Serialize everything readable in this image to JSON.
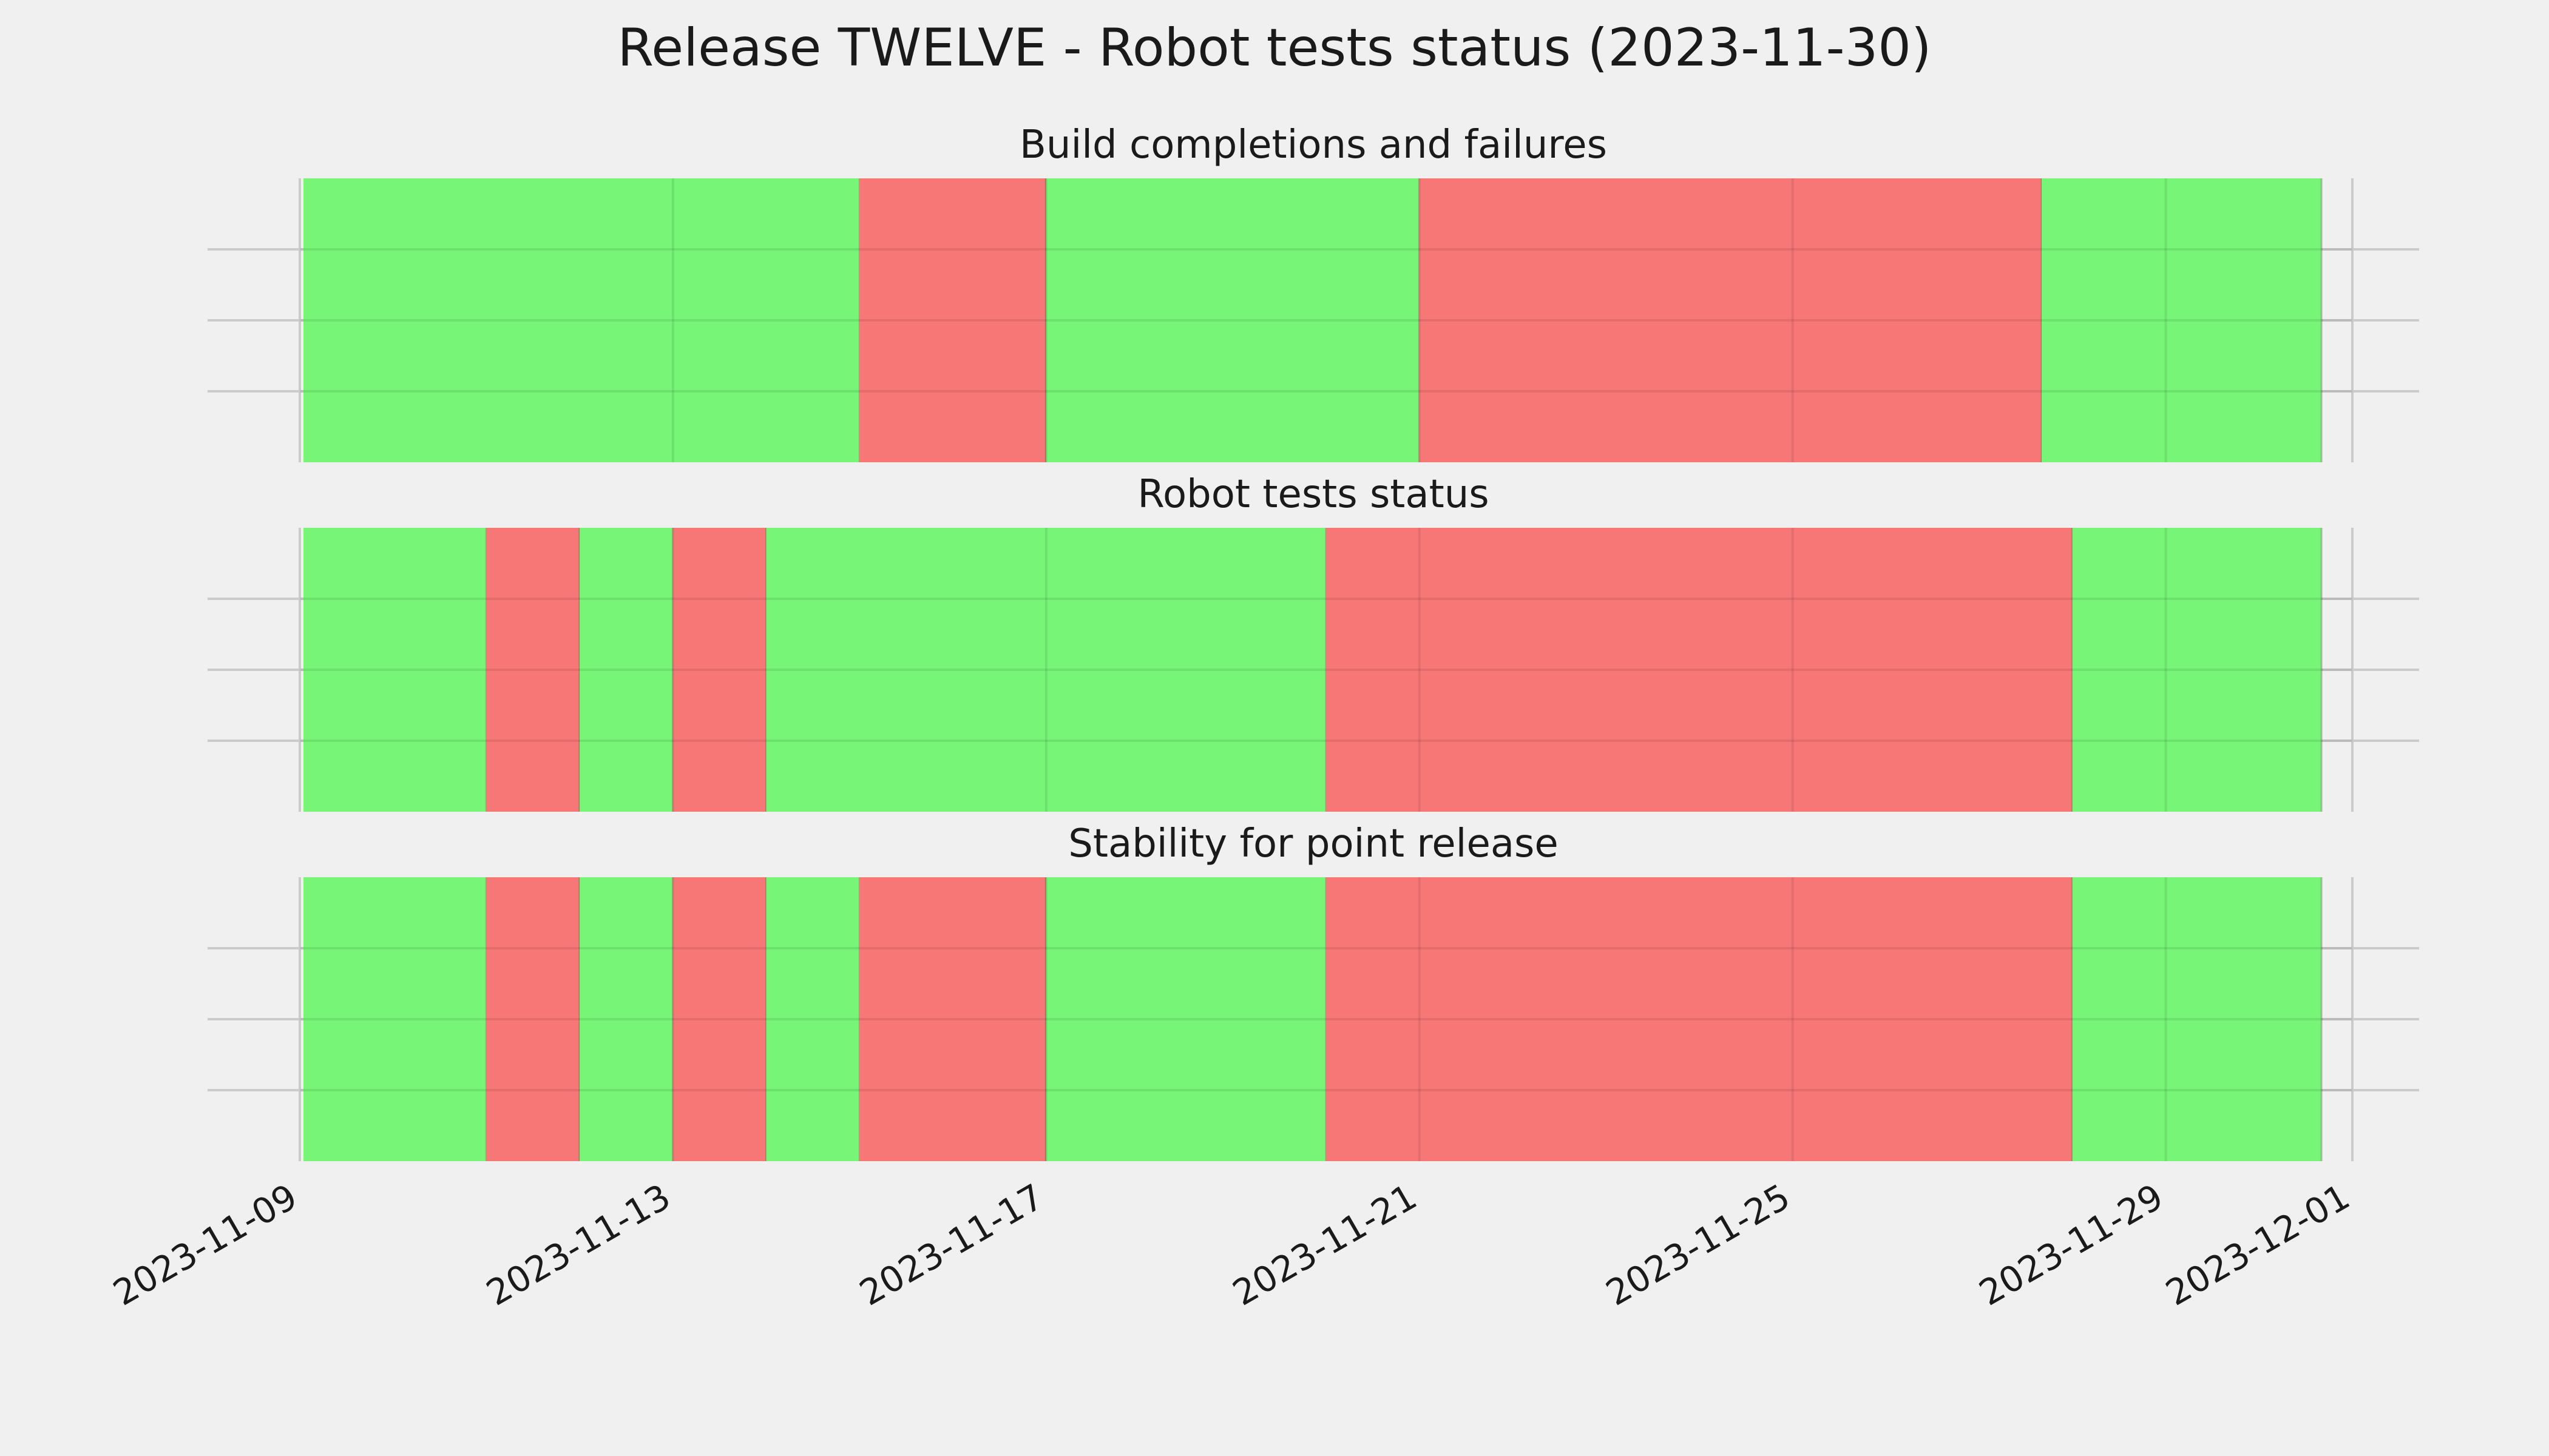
{
  "chart_data": {
    "type": "timeline",
    "title": "Release TWELVE - Robot tests status (2023-11-30)",
    "x_range": [
      "2023-11-09",
      "2023-12-01"
    ],
    "x_ticks": [
      "2023-11-09",
      "2023-11-13",
      "2023-11-17",
      "2023-11-21",
      "2023-11-25",
      "2023-11-29",
      "2023-12-01"
    ],
    "grid": true,
    "colors": {
      "pass": "#77f577",
      "fail": "#f77777"
    },
    "panels": [
      {
        "name": "Build completions and failures",
        "segments": [
          {
            "start": "2023-11-09",
            "end": "2023-11-15",
            "status": "pass"
          },
          {
            "start": "2023-11-15",
            "end": "2023-11-17",
            "status": "fail"
          },
          {
            "start": "2023-11-17",
            "end": "2023-11-21",
            "status": "pass"
          },
          {
            "start": "2023-11-21",
            "end": "2023-11-27.67",
            "status": "fail"
          },
          {
            "start": "2023-11-27.67",
            "end": "2023-11-30.67",
            "status": "pass"
          }
        ]
      },
      {
        "name": "Robot tests status",
        "segments": [
          {
            "start": "2023-11-09",
            "end": "2023-11-11",
            "status": "pass"
          },
          {
            "start": "2023-11-11",
            "end": "2023-11-12",
            "status": "fail"
          },
          {
            "start": "2023-11-12",
            "end": "2023-11-13",
            "status": "pass"
          },
          {
            "start": "2023-11-13",
            "end": "2023-11-14",
            "status": "fail"
          },
          {
            "start": "2023-11-14",
            "end": "2023-11-20",
            "status": "pass"
          },
          {
            "start": "2023-11-20",
            "end": "2023-11-28",
            "status": "fail"
          },
          {
            "start": "2023-11-28",
            "end": "2023-11-30.67",
            "status": "pass"
          }
        ]
      },
      {
        "name": "Stability for point release",
        "segments": [
          {
            "start": "2023-11-09",
            "end": "2023-11-11",
            "status": "pass"
          },
          {
            "start": "2023-11-11",
            "end": "2023-11-12",
            "status": "fail"
          },
          {
            "start": "2023-11-12",
            "end": "2023-11-13",
            "status": "pass"
          },
          {
            "start": "2023-11-13",
            "end": "2023-11-14",
            "status": "fail"
          },
          {
            "start": "2023-11-14",
            "end": "2023-11-15",
            "status": "pass"
          },
          {
            "start": "2023-11-15",
            "end": "2023-11-17",
            "status": "fail"
          },
          {
            "start": "2023-11-17",
            "end": "2023-11-20",
            "status": "pass"
          },
          {
            "start": "2023-11-20",
            "end": "2023-11-28",
            "status": "fail"
          },
          {
            "start": "2023-11-28",
            "end": "2023-11-30.67",
            "status": "pass"
          }
        ]
      }
    ]
  }
}
